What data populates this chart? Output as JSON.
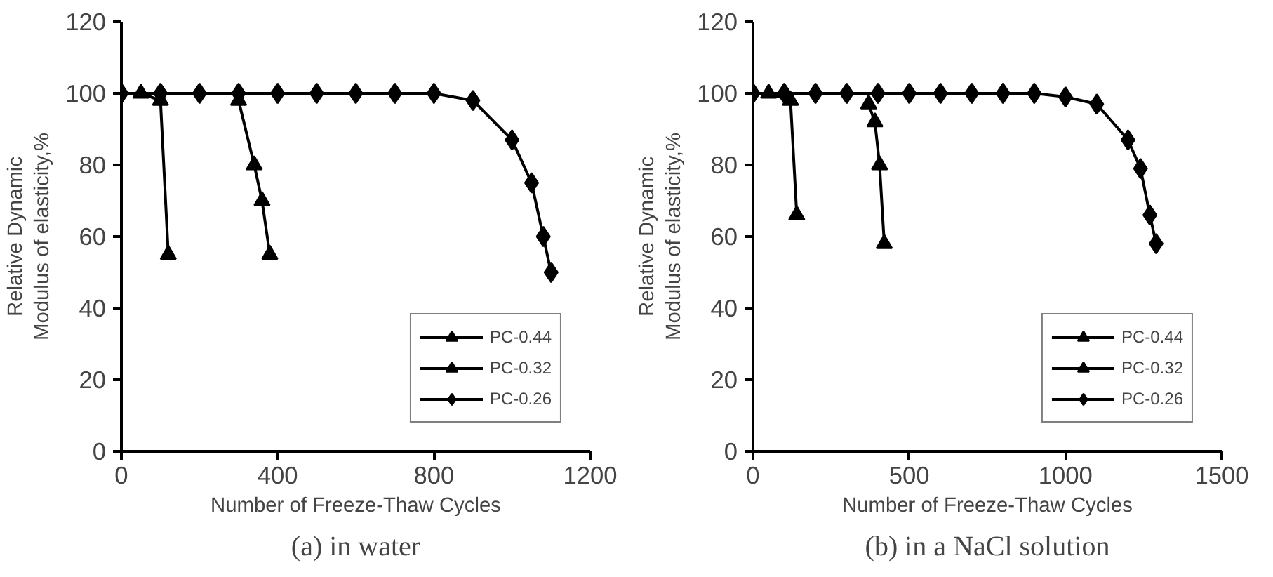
{
  "chart_data": [
    {
      "type": "line",
      "title": "(a) in water",
      "xlabel": "Number of Freeze-Thaw Cycles",
      "ylabel": "Relative Dynamic\nModulus of elasticity,%",
      "xlim": [
        0,
        1200
      ],
      "xticks": [
        0,
        400,
        800,
        1200
      ],
      "ylim": [
        0,
        120
      ],
      "yticks": [
        0,
        20,
        40,
        60,
        80,
        100,
        120
      ],
      "grid": false,
      "legend": "bottom right",
      "line_style": "solid",
      "series": [
        {
          "name": "PC-0.44",
          "color": "#000000",
          "marker": "triangle",
          "x": [
            50,
            100,
            120
          ],
          "values": [
            100,
            98,
            55
          ]
        },
        {
          "name": "PC-0.32",
          "color": "#000000",
          "marker": "triangle",
          "x": [
            300,
            340,
            360,
            380
          ],
          "values": [
            98,
            80,
            70,
            55
          ]
        },
        {
          "name": "PC-0.26",
          "color": "#000000",
          "marker": "diamond",
          "x": [
            0,
            100,
            200,
            300,
            400,
            500,
            600,
            700,
            800,
            900,
            1000,
            1050,
            1080,
            1100
          ],
          "values": [
            100,
            100,
            100,
            100,
            100,
            100,
            100,
            100,
            100,
            98,
            87,
            75,
            60,
            50
          ]
        }
      ]
    },
    {
      "type": "line",
      "title": "(b) in a NaCl solution",
      "xlabel": "Number of Freeze-Thaw Cycles",
      "ylabel": "Relative Dynamic\nModulus of elasticity,%",
      "xlim": [
        0,
        1500
      ],
      "xticks": [
        0,
        500,
        1000,
        1500
      ],
      "ylim": [
        0,
        120
      ],
      "yticks": [
        0,
        20,
        40,
        60,
        80,
        100,
        120
      ],
      "grid": false,
      "legend": "bottom right",
      "line_style": "solid",
      "series": [
        {
          "name": "PC-0.44",
          "color": "#000000",
          "marker": "triangle",
          "x": [
            50,
            120,
            140
          ],
          "values": [
            100,
            98,
            66
          ]
        },
        {
          "name": "PC-0.32",
          "color": "#000000",
          "marker": "triangle",
          "x": [
            370,
            390,
            405,
            420
          ],
          "values": [
            97,
            92,
            80,
            58
          ]
        },
        {
          "name": "PC-0.26",
          "color": "#000000",
          "marker": "diamond",
          "x": [
            0,
            100,
            200,
            300,
            400,
            500,
            600,
            700,
            800,
            900,
            1000,
            1100,
            1200,
            1240,
            1270,
            1290
          ],
          "values": [
            100,
            100,
            100,
            100,
            100,
            100,
            100,
            100,
            100,
            100,
            99,
            97,
            87,
            79,
            66,
            58
          ]
        }
      ]
    }
  ]
}
